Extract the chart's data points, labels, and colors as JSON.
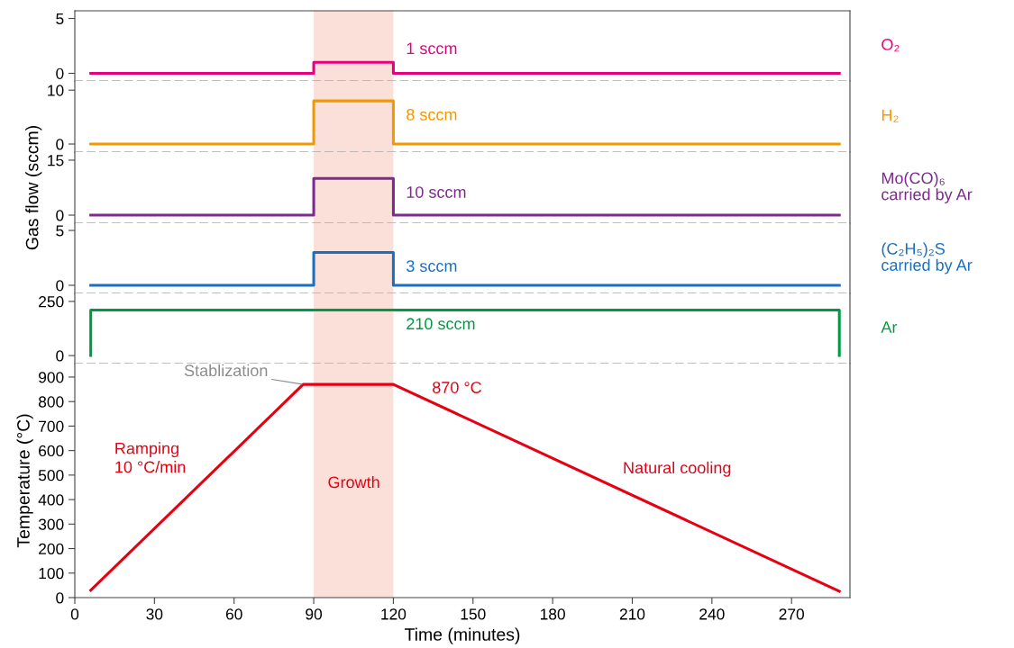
{
  "chart_data": [
    {
      "type": "line",
      "xlim": [
        0,
        292
      ],
      "ylim": [
        -0.7,
        5.7
      ],
      "yticks": [
        0,
        5
      ],
      "tick_labels": "y",
      "bands": [
        {
          "axis": "x",
          "from": 90,
          "to": 120,
          "color": "#fbe0da"
        }
      ],
      "series": [
        {
          "name": "O₂",
          "color": "#e6007e",
          "x": [
            6,
            90,
            90,
            120,
            120,
            288
          ],
          "values": [
            0,
            0,
            1,
            1,
            0,
            0
          ],
          "value_labels": [
            null,
            null,
            null,
            "1 sccm",
            null,
            null
          ]
        }
      ]
    },
    {
      "type": "line",
      "xlim": [
        0,
        292
      ],
      "ylim": [
        -1.5,
        11.7
      ],
      "yticks": [
        0,
        10
      ],
      "tick_labels": "y",
      "bands": [
        {
          "axis": "x",
          "from": 90,
          "to": 120,
          "color": "#fbe0da"
        }
      ],
      "series": [
        {
          "name": "H₂",
          "color": "#f39800",
          "x": [
            6,
            90,
            90,
            120,
            120,
            288
          ],
          "values": [
            0,
            0,
            8,
            8,
            0,
            0
          ],
          "value_labels": [
            null,
            null,
            null,
            "8 sccm",
            null,
            null
          ]
        }
      ]
    },
    {
      "type": "line",
      "xlim": [
        0,
        292
      ],
      "ylim": [
        -2.2,
        17.2
      ],
      "yticks": [
        0,
        15
      ],
      "tick_labels": "y",
      "ylabel": "Gas flow (sccm)",
      "bands": [
        {
          "axis": "x",
          "from": 90,
          "to": 120,
          "color": "#fbe0da"
        }
      ],
      "series": [
        {
          "name": "Mo(CO)₆\ncarried by Ar",
          "color": "#7d2a8e",
          "x": [
            6,
            90,
            90,
            120,
            120,
            288
          ],
          "values": [
            0,
            0,
            10,
            10,
            0,
            0
          ],
          "value_labels": [
            null,
            null,
            null,
            "10 sccm",
            null,
            null
          ]
        }
      ]
    },
    {
      "type": "line",
      "xlim": [
        0,
        292
      ],
      "ylim": [
        -0.74,
        5.66
      ],
      "yticks": [
        0,
        5
      ],
      "tick_labels": "y",
      "bands": [
        {
          "axis": "x",
          "from": 90,
          "to": 120,
          "color": "#fbe0da"
        }
      ],
      "series": [
        {
          "name": "(C₂H₅)₂S\ncarried by Ar",
          "color": "#1a6fbf",
          "x": [
            6,
            90,
            90,
            120,
            120,
            288
          ],
          "values": [
            0,
            0,
            3,
            3,
            0,
            0
          ],
          "value_labels": [
            null,
            null,
            null,
            "3 sccm",
            null,
            null
          ]
        }
      ]
    },
    {
      "type": "line",
      "xlim": [
        0,
        292
      ],
      "ylim": [
        -37,
        287
      ],
      "yticks": [
        0,
        250
      ],
      "tick_labels": "y",
      "bands": [
        {
          "axis": "x",
          "from": 90,
          "to": 120,
          "color": "#fbe0da"
        }
      ],
      "series": [
        {
          "name": "Ar",
          "color": "#009a44",
          "x": [
            6,
            6,
            120,
            288,
            288
          ],
          "values": [
            0,
            210,
            210,
            210,
            0
          ],
          "value_labels": [
            null,
            null,
            "210 sccm",
            null,
            null
          ]
        }
      ]
    },
    {
      "type": "line",
      "xlim": [
        0,
        292
      ],
      "ylim": [
        0,
        955
      ],
      "xticks": [
        0,
        30,
        60,
        90,
        120,
        150,
        180,
        210,
        240,
        270
      ],
      "yticks": [
        0,
        100,
        200,
        300,
        400,
        500,
        600,
        700,
        800,
        900
      ],
      "xlabel": "Time (minutes)",
      "ylabel": "Temperature (°C)",
      "bands": [
        {
          "axis": "x",
          "from": 90,
          "to": 120,
          "color": "#fbe0da"
        }
      ],
      "series": [
        {
          "color": "#e60012",
          "x": [
            6,
            86,
            120,
            288
          ],
          "values": [
            30,
            870,
            870,
            26
          ]
        }
      ],
      "annotations": [
        {
          "text": "Stablization",
          "x": 86,
          "y": 870
        },
        "870 °C",
        "Ramping\n10 °C/min",
        "Growth",
        "Natural cooling"
      ]
    }
  ]
}
